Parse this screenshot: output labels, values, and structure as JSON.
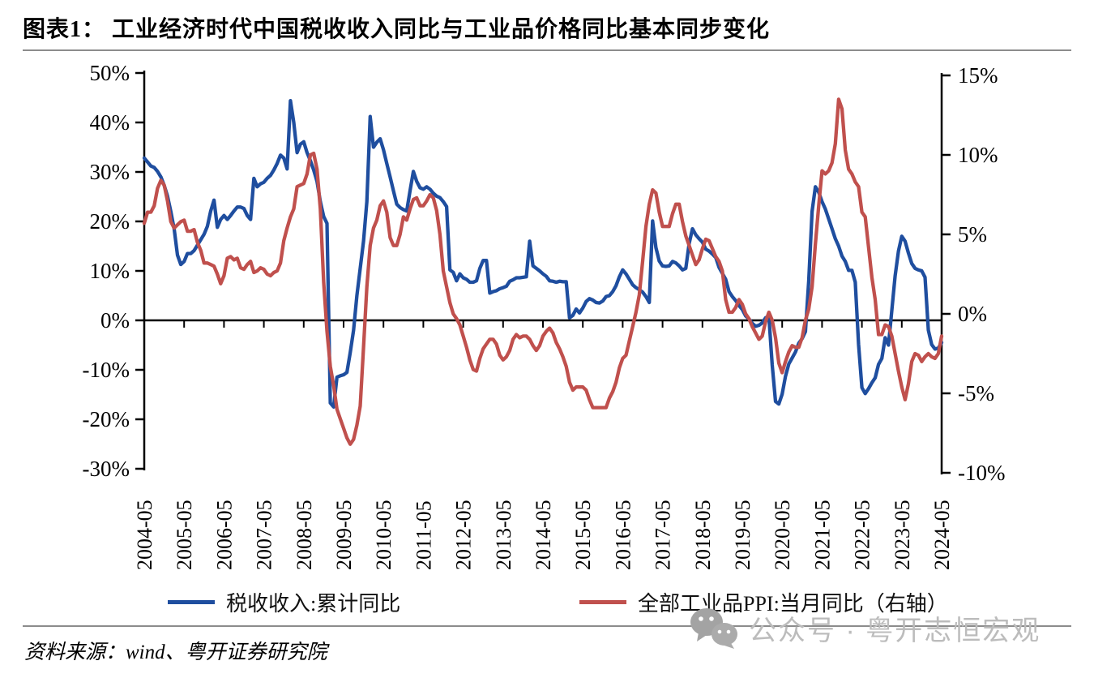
{
  "title": "图表1： 工业经济时代中国税收收入同比与工业品价格同比基本同步变化",
  "footer": {
    "source": "资料来源：wind、粤开证券研究院",
    "watermark": "公众号 · 粤开志恒宏观"
  },
  "chart_data": {
    "type": "line",
    "title": "",
    "x_unit": "month",
    "x_start": "2004-05",
    "x_end": "2024-05",
    "x_tick_labels": [
      "2004-05",
      "2005-05",
      "2006-05",
      "2007-05",
      "2008-05",
      "2009-05",
      "2010-05",
      "2011-05",
      "2012-05",
      "2013-05",
      "2014-05",
      "2015-05",
      "2016-05",
      "2017-05",
      "2018-05",
      "2019-05",
      "2020-05",
      "2021-05",
      "2022-05",
      "2023-05",
      "2024-05"
    ],
    "grid": "off",
    "legend_position": "bottom",
    "left_axis": {
      "min": -30,
      "max": 50,
      "tick_step": 10,
      "tick_labels": [
        "50%",
        "40%",
        "30%",
        "20%",
        "10%",
        "0%",
        "-10%",
        "-20%",
        "-30%"
      ],
      "tick_values": [
        50,
        40,
        30,
        20,
        10,
        0,
        -10,
        -20,
        -30
      ]
    },
    "right_axis": {
      "min": -10,
      "max": 15,
      "tick_step": 5,
      "tick_labels": [
        "15%",
        "10%",
        "5%",
        "0%",
        "-5%",
        "-10%"
      ],
      "tick_values": [
        15,
        10,
        5,
        0,
        -5,
        -10
      ]
    },
    "series": [
      {
        "name": "税收收入:累计同比",
        "axis": "left",
        "color": "#1F4E9F",
        "monthly_values": [
          32.8,
          32.0,
          31.2,
          30.9,
          30.1,
          29.0,
          27.3,
          25.1,
          22.0,
          18.5,
          13.2,
          11.3,
          11.9,
          13.5,
          13.5,
          14.1,
          15.2,
          16.3,
          17.4,
          19.0,
          22.1,
          24.3,
          18.8,
          20.4,
          21.2,
          20.4,
          21.2,
          22.1,
          22.9,
          22.9,
          22.6,
          21.2,
          20.4,
          28.7,
          27.0,
          27.6,
          27.9,
          28.7,
          29.3,
          30.4,
          31.7,
          33.4,
          32.8,
          30.6,
          44.4,
          40.0,
          33.9,
          35.6,
          36.1,
          33.9,
          32.3,
          30.4,
          28.1,
          24.0,
          21.0,
          19.6,
          -16.7,
          -17.5,
          -11.5,
          -11.2,
          -11.0,
          -10.5,
          -6.5,
          -2.0,
          5.0,
          10.5,
          16.0,
          24.0,
          41.2,
          35.0,
          36.0,
          36.7,
          34.5,
          31.7,
          29.0,
          26.2,
          23.5,
          22.8,
          22.4,
          22.1,
          26.2,
          30.1,
          28.1,
          26.8,
          26.5,
          27.0,
          26.5,
          25.7,
          25.1,
          24.8,
          24.0,
          23.0,
          10.2,
          9.7,
          8.0,
          9.4,
          8.6,
          8.3,
          7.7,
          7.7,
          8.0,
          10.5,
          12.1,
          12.1,
          5.5,
          5.8,
          6.0,
          6.4,
          6.6,
          6.9,
          7.9,
          8.2,
          8.6,
          8.6,
          8.7,
          8.8,
          16.0,
          11.0,
          10.5,
          10.0,
          9.4,
          8.9,
          8.0,
          7.9,
          7.7,
          7.9,
          7.8,
          7.8,
          0.5,
          1.0,
          2.3,
          1.5,
          2.5,
          3.8,
          4.4,
          4.1,
          3.6,
          3.5,
          3.9,
          4.8,
          5.0,
          5.8,
          7.0,
          8.8,
          10.2,
          9.4,
          8.3,
          7.2,
          6.6,
          6.2,
          5.7,
          4.8,
          3.6,
          20.1,
          14.7,
          12.0,
          11.0,
          10.9,
          11.0,
          11.9,
          11.6,
          11.0,
          10.2,
          10.5,
          15.5,
          18.5,
          17.3,
          16.5,
          15.8,
          14.4,
          14.0,
          13.4,
          12.7,
          10.7,
          9.5,
          8.3,
          5.8,
          4.8,
          4.0,
          3.0,
          2.2,
          0.9,
          0.3,
          -0.6,
          -1.2,
          -1.0,
          -0.5,
          0.5,
          0.8,
          -9.0,
          -16.4,
          -16.9,
          -14.9,
          -11.3,
          -8.8,
          -7.6,
          -6.4,
          -4.6,
          -3.7,
          -2.3,
          8.0,
          22.0,
          27.0,
          25.9,
          24.0,
          22.5,
          20.5,
          18.5,
          16.5,
          15.0,
          13.0,
          11.9,
          10.1,
          10.1,
          7.7,
          -4.9,
          -13.6,
          -14.8,
          -13.8,
          -12.6,
          -11.6,
          -8.9,
          -7.7,
          -3.5,
          -5.0,
          2.0,
          9.0,
          14.0,
          17.0,
          16.0,
          13.6,
          11.5,
          10.5,
          10.2,
          10.0,
          8.7,
          -2.0,
          -4.9,
          -5.8,
          -5.6,
          -4.5
        ]
      },
      {
        "name": "全部工业品PPI:当月同比（右轴）",
        "axis": "right",
        "color": "#C0504D",
        "monthly_values": [
          5.7,
          6.4,
          6.4,
          6.8,
          7.9,
          8.4,
          8.1,
          7.1,
          5.8,
          5.4,
          5.6,
          5.8,
          5.9,
          5.2,
          5.2,
          5.3,
          4.5,
          4.0,
          3.2,
          3.2,
          3.1,
          3.0,
          2.5,
          1.9,
          2.4,
          3.5,
          3.6,
          3.4,
          3.5,
          2.9,
          2.8,
          3.1,
          3.3,
          2.6,
          2.7,
          2.9,
          2.8,
          2.5,
          2.4,
          2.6,
          2.7,
          3.2,
          4.6,
          5.4,
          6.1,
          6.6,
          8.0,
          8.1,
          8.2,
          8.8,
          10.0,
          10.1,
          9.1,
          6.6,
          2.0,
          -1.1,
          -3.3,
          -4.5,
          -6.0,
          -6.6,
          -7.2,
          -7.8,
          -8.2,
          -7.9,
          -7.0,
          -5.8,
          -2.1,
          1.7,
          4.3,
          5.4,
          5.9,
          6.8,
          7.1,
          6.4,
          4.8,
          4.3,
          4.3,
          5.0,
          6.1,
          5.9,
          6.6,
          7.2,
          7.3,
          6.8,
          6.8,
          7.1,
          7.5,
          7.3,
          6.5,
          5.0,
          2.7,
          1.7,
          0.7,
          0.0,
          -0.3,
          -0.7,
          -1.4,
          -2.1,
          -2.9,
          -3.5,
          -3.6,
          -2.8,
          -2.2,
          -1.9,
          -1.6,
          -1.6,
          -1.9,
          -2.6,
          -2.9,
          -2.7,
          -2.3,
          -1.6,
          -1.3,
          -1.5,
          -1.4,
          -1.4,
          -1.6,
          -2.0,
          -2.3,
          -2.0,
          -1.4,
          -1.1,
          -0.9,
          -1.2,
          -1.8,
          -2.2,
          -2.7,
          -3.3,
          -4.3,
          -4.8,
          -4.6,
          -4.6,
          -4.6,
          -4.8,
          -5.4,
          -5.9,
          -5.9,
          -5.9,
          -5.9,
          -5.9,
          -5.3,
          -4.9,
          -4.3,
          -3.4,
          -2.8,
          -2.6,
          -1.7,
          -0.8,
          0.1,
          1.2,
          3.3,
          5.5,
          6.9,
          7.8,
          7.6,
          6.4,
          5.5,
          5.5,
          5.5,
          6.3,
          6.9,
          6.9,
          5.8,
          4.9,
          4.3,
          3.7,
          3.1,
          3.4,
          4.1,
          4.7,
          4.6,
          4.1,
          3.6,
          3.3,
          2.7,
          0.9,
          0.1,
          0.1,
          0.4,
          0.9,
          0.6,
          0.0,
          -0.3,
          -0.8,
          -1.2,
          -1.6,
          -1.4,
          -0.5,
          0.1,
          -0.4,
          -1.5,
          -3.1,
          -3.7,
          -3.0,
          -2.4,
          -2.0,
          -2.1,
          -2.1,
          -1.5,
          -0.4,
          0.3,
          1.7,
          4.4,
          6.8,
          9.0,
          8.8,
          9.0,
          9.5,
          10.7,
          13.5,
          12.9,
          10.3,
          9.1,
          8.8,
          8.3,
          8.0,
          6.4,
          6.1,
          4.2,
          2.3,
          0.9,
          -1.3,
          -1.3,
          -0.7,
          -0.8,
          -1.4,
          -2.5,
          -3.6,
          -4.6,
          -5.4,
          -4.4,
          -3.0,
          -2.5,
          -2.6,
          -3.0,
          -2.7,
          -2.5,
          -2.7,
          -2.8,
          -2.5,
          -1.4
        ]
      }
    ]
  }
}
